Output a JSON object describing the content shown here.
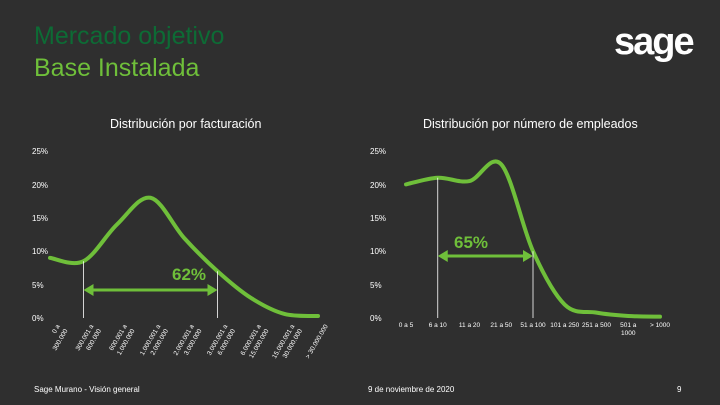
{
  "slide": {
    "title_line1": "Mercado objetivo",
    "title_line2": "Base Instalada",
    "logo_text": "sage",
    "footer_left": "Sage Murano - Visión general",
    "footer_center": "9 de noviembre de 2020",
    "page_number": "9",
    "accent_color": "#6fbf3a",
    "title_color": "#0d6b35",
    "background_color": "#2f2f2f"
  },
  "chart_data": [
    {
      "type": "line",
      "title": "Distribución por facturación",
      "ylim": [
        0,
        25
      ],
      "yticks": [
        "25%",
        "20%",
        "15%",
        "10%",
        "5%",
        "0%"
      ],
      "categories": [
        "0 a 300.000",
        "300.001 a 600.000",
        "600.001 a 1.000.000",
        "1.000.001 a 2.000.000",
        "2.000.001 a 3.000.000",
        "3.000.001 a 6.000.000",
        "6.000.001 a 15.000.000",
        "15.000.001 a 30.000.000",
        "> 30.000.000"
      ],
      "x_tick_lines": [
        [
          "0 a",
          "300.000"
        ],
        [
          "300.001 a",
          "600.000"
        ],
        [
          "600.001 a",
          "1.000.000"
        ],
        [
          "1.000.001 a",
          "2.000.000"
        ],
        [
          "2.000.001 a",
          "3.000.000"
        ],
        [
          "3.000.001 a",
          "6.000.000"
        ],
        [
          "6.000.001 a",
          "15.000.000"
        ],
        [
          "15.000.001 a",
          "30.000.000"
        ],
        [
          "> 30.000.000"
        ]
      ],
      "series": [
        {
          "values": [
            9,
            8.5,
            14,
            18,
            12,
            7,
            3,
            0.6,
            0.3
          ]
        }
      ],
      "bracket": {
        "from": 1,
        "to": 5,
        "label": "62%"
      },
      "grid": false
    },
    {
      "type": "line",
      "title": "Distribución por número de empleados",
      "ylim": [
        0,
        25
      ],
      "yticks": [
        "25%",
        "20%",
        "15%",
        "10%",
        "5%",
        "0%"
      ],
      "categories": [
        "0 a 5",
        "6 a 10",
        "11 a 20",
        "21 a 50",
        "51 a 100",
        "101 a 250",
        "251 a 500",
        "501 a 1000",
        "> 1000"
      ],
      "x_tick_lines": [
        [
          "0 a 5"
        ],
        [
          "6 a 10"
        ],
        [
          "11 a 20"
        ],
        [
          "21 a 50"
        ],
        [
          "51 a 100"
        ],
        [
          "101 a 250"
        ],
        [
          "251 a 500"
        ],
        [
          "501 a",
          "1000"
        ],
        [
          "> 1000"
        ]
      ],
      "series": [
        {
          "values": [
            20,
            21,
            20.5,
            23,
            10,
            2,
            0.8,
            0.3,
            0.2
          ]
        }
      ],
      "bracket": {
        "from": 1,
        "to": 4,
        "label": "65%"
      },
      "grid": false
    }
  ]
}
